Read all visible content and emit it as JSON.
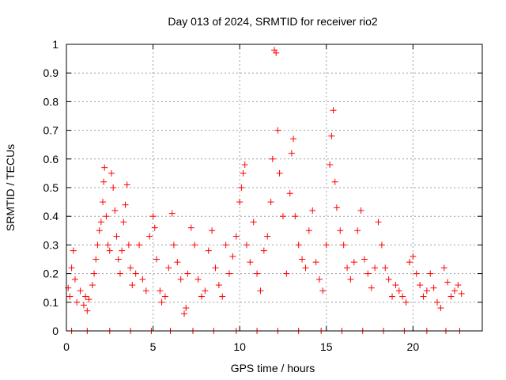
{
  "chart_data": {
    "type": "scatter",
    "title": "Day 013 of 2024, SRMTID for receiver rio2",
    "xlabel": "GPS time / hours",
    "ylabel": "SRMTID / TECUs",
    "xlim": [
      0,
      24
    ],
    "ylim": [
      0,
      1
    ],
    "x_ticks": [
      0,
      5,
      10,
      15,
      20
    ],
    "x_tick_labels": [
      "0",
      "5",
      "10",
      "15",
      "20"
    ],
    "y_ticks": [
      0,
      0.1,
      0.2,
      0.3,
      0.4,
      0.5,
      0.6,
      0.7,
      0.8,
      0.9,
      1
    ],
    "y_tick_labels": [
      "0",
      "0.1",
      "0.2",
      "0.3",
      "0.4",
      "0.5",
      "0.6",
      "0.7",
      "0.8",
      "0.9",
      "1"
    ],
    "grid": true,
    "marker": "+",
    "series": [
      {
        "name": "SRMTID",
        "color": "#ff0000",
        "points": [
          [
            0.1,
            0.15
          ],
          [
            0.2,
            0.12
          ],
          [
            0.3,
            0.22
          ],
          [
            0.4,
            0.28
          ],
          [
            0.5,
            0.18
          ],
          [
            0.6,
            0.1
          ],
          [
            0.8,
            0.14
          ],
          [
            1.0,
            0.09
          ],
          [
            1.1,
            0.12
          ],
          [
            1.2,
            0.07
          ],
          [
            1.3,
            0.11
          ],
          [
            1.5,
            0.16
          ],
          [
            1.6,
            0.2
          ],
          [
            1.7,
            0.25
          ],
          [
            1.8,
            0.3
          ],
          [
            1.9,
            0.35
          ],
          [
            2.0,
            0.38
          ],
          [
            2.1,
            0.45
          ],
          [
            2.15,
            0.52
          ],
          [
            2.2,
            0.57
          ],
          [
            2.3,
            0.4
          ],
          [
            2.4,
            0.3
          ],
          [
            2.5,
            0.28
          ],
          [
            2.6,
            0.55
          ],
          [
            2.7,
            0.5
          ],
          [
            2.8,
            0.42
          ],
          [
            2.9,
            0.33
          ],
          [
            3.0,
            0.25
          ],
          [
            3.1,
            0.2
          ],
          [
            3.2,
            0.28
          ],
          [
            3.3,
            0.38
          ],
          [
            3.4,
            0.44
          ],
          [
            3.5,
            0.51
          ],
          [
            3.6,
            0.3
          ],
          [
            3.7,
            0.22
          ],
          [
            3.8,
            0.16
          ],
          [
            4.0,
            0.2
          ],
          [
            4.2,
            0.3
          ],
          [
            4.4,
            0.18
          ],
          [
            4.6,
            0.14
          ],
          [
            4.8,
            0.33
          ],
          [
            5.0,
            0.4
          ],
          [
            5.1,
            0.36
          ],
          [
            5.2,
            0.25
          ],
          [
            5.4,
            0.14
          ],
          [
            5.5,
            0.1
          ],
          [
            5.7,
            0.12
          ],
          [
            5.9,
            0.22
          ],
          [
            6.1,
            0.41
          ],
          [
            6.2,
            0.3
          ],
          [
            6.4,
            0.24
          ],
          [
            6.6,
            0.18
          ],
          [
            6.8,
            0.06
          ],
          [
            6.9,
            0.08
          ],
          [
            7.0,
            0.2
          ],
          [
            7.2,
            0.36
          ],
          [
            7.4,
            0.3
          ],
          [
            7.6,
            0.18
          ],
          [
            7.8,
            0.12
          ],
          [
            8.0,
            0.14
          ],
          [
            8.2,
            0.28
          ],
          [
            8.4,
            0.35
          ],
          [
            8.6,
            0.22
          ],
          [
            8.8,
            0.16
          ],
          [
            9.0,
            0.12
          ],
          [
            9.2,
            0.3
          ],
          [
            9.4,
            0.2
          ],
          [
            9.6,
            0.26
          ],
          [
            9.8,
            0.33
          ],
          [
            10.0,
            0.45
          ],
          [
            10.1,
            0.5
          ],
          [
            10.2,
            0.55
          ],
          [
            10.3,
            0.58
          ],
          [
            10.4,
            0.3
          ],
          [
            10.6,
            0.24
          ],
          [
            10.8,
            0.38
          ],
          [
            11.0,
            0.2
          ],
          [
            11.2,
            0.14
          ],
          [
            11.4,
            0.28
          ],
          [
            11.6,
            0.33
          ],
          [
            11.8,
            0.45
          ],
          [
            11.9,
            0.6
          ],
          [
            12.0,
            0.98
          ],
          [
            12.1,
            0.97
          ],
          [
            12.2,
            0.7
          ],
          [
            12.3,
            0.55
          ],
          [
            12.5,
            0.4
          ],
          [
            12.7,
            0.2
          ],
          [
            12.9,
            0.48
          ],
          [
            13.0,
            0.62
          ],
          [
            13.1,
            0.67
          ],
          [
            13.2,
            0.4
          ],
          [
            13.4,
            0.3
          ],
          [
            13.6,
            0.25
          ],
          [
            13.8,
            0.22
          ],
          [
            14.0,
            0.35
          ],
          [
            14.2,
            0.42
          ],
          [
            14.4,
            0.24
          ],
          [
            14.6,
            0.18
          ],
          [
            14.8,
            0.14
          ],
          [
            15.0,
            0.3
          ],
          [
            15.2,
            0.58
          ],
          [
            15.3,
            0.68
          ],
          [
            15.4,
            0.77
          ],
          [
            15.5,
            0.52
          ],
          [
            15.6,
            0.43
          ],
          [
            15.8,
            0.35
          ],
          [
            16.0,
            0.3
          ],
          [
            16.2,
            0.22
          ],
          [
            16.4,
            0.18
          ],
          [
            16.6,
            0.24
          ],
          [
            16.8,
            0.35
          ],
          [
            17.0,
            0.42
          ],
          [
            17.2,
            0.25
          ],
          [
            17.4,
            0.2
          ],
          [
            17.6,
            0.15
          ],
          [
            17.8,
            0.22
          ],
          [
            18.0,
            0.38
          ],
          [
            18.2,
            0.3
          ],
          [
            18.4,
            0.22
          ],
          [
            18.6,
            0.18
          ],
          [
            18.8,
            0.12
          ],
          [
            19.0,
            0.16
          ],
          [
            19.2,
            0.14
          ],
          [
            19.4,
            0.12
          ],
          [
            19.6,
            0.1
          ],
          [
            19.8,
            0.24
          ],
          [
            20.0,
            0.26
          ],
          [
            20.2,
            0.2
          ],
          [
            20.4,
            0.16
          ],
          [
            20.6,
            0.12
          ],
          [
            20.8,
            0.14
          ],
          [
            21.0,
            0.2
          ],
          [
            21.2,
            0.15
          ],
          [
            21.4,
            0.1
          ],
          [
            21.6,
            0.08
          ],
          [
            21.8,
            0.22
          ],
          [
            22.0,
            0.17
          ],
          [
            22.2,
            0.12
          ],
          [
            22.4,
            0.14
          ],
          [
            22.6,
            0.16
          ],
          [
            22.8,
            0.13
          ],
          [
            0.3,
            0.0
          ],
          [
            1.2,
            0.0
          ],
          [
            2.5,
            0.0
          ],
          [
            3.7,
            0.0
          ],
          [
            4.9,
            0.0
          ],
          [
            6.0,
            0.0
          ],
          [
            7.3,
            0.0
          ],
          [
            8.5,
            0.0
          ],
          [
            9.8,
            0.0
          ],
          [
            11.0,
            0.0
          ],
          [
            12.2,
            0.0
          ],
          [
            13.4,
            0.0
          ],
          [
            14.7,
            0.0
          ],
          [
            15.9,
            0.0
          ],
          [
            17.1,
            0.0
          ],
          [
            18.3,
            0.0
          ],
          [
            19.5,
            0.0
          ],
          [
            20.8,
            0.0
          ],
          [
            21.9,
            0.0
          ],
          [
            22.7,
            0.0
          ]
        ]
      }
    ]
  }
}
